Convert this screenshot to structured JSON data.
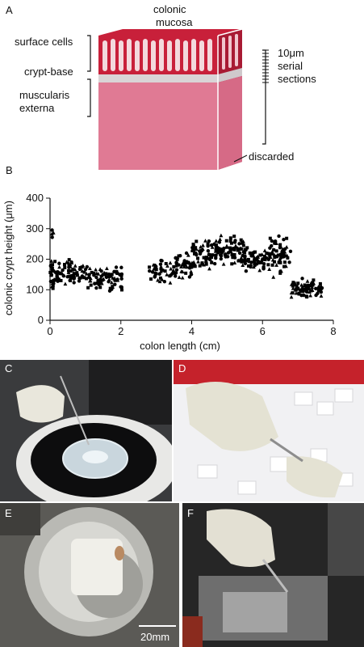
{
  "panels": {
    "a": {
      "letter": "A",
      "title_line1": "colonic",
      "title_line2": "mucosa",
      "left_labels": [
        "surface cells",
        "crypt-base",
        "muscularis",
        "externa"
      ],
      "right_line1": "10μm",
      "right_line2": "serial",
      "right_line3": "sections",
      "discarded": "discarded",
      "colors": {
        "mucosa": "#c8203a",
        "muscle": "#e07a94",
        "crypt": "#f3d9dd",
        "submucosa": "#d9d4d6"
      }
    },
    "b": {
      "letter": "B",
      "c": "C",
      "d": "D",
      "e": "E",
      "f": "F",
      "scalebar_label": "20mm"
    }
  },
  "chart_data": {
    "type": "scatter",
    "xlabel": "colon length (cm)",
    "ylabel": "colonic crypt height (μm)",
    "xlim": [
      0,
      8
    ],
    "ylim": [
      0,
      400
    ],
    "xticks": [
      "0",
      "2",
      "4",
      "6",
      "8"
    ],
    "yticks": [
      "0",
      "100",
      "200",
      "300",
      "400"
    ],
    "grid": false,
    "marker_color": "#000000",
    "segments": [
      {
        "x0": 0.0,
        "x1": 0.15,
        "mean": 150,
        "spread": 70,
        "n": 25
      },
      {
        "x0": 0.05,
        "x1": 0.12,
        "mean": 285,
        "spread": 15,
        "n": 4
      },
      {
        "x0": 0.15,
        "x1": 1.0,
        "mean": 160,
        "spread": 45,
        "n": 70
      },
      {
        "x0": 1.0,
        "x1": 2.05,
        "mean": 140,
        "spread": 45,
        "n": 80
      },
      {
        "x0": 2.8,
        "x1": 3.5,
        "mean": 160,
        "spread": 40,
        "n": 40
      },
      {
        "x0": 3.5,
        "x1": 4.0,
        "mean": 180,
        "spread": 50,
        "n": 40
      },
      {
        "x0": 4.0,
        "x1": 4.7,
        "mean": 220,
        "spread": 60,
        "n": 70
      },
      {
        "x0": 4.7,
        "x1": 5.5,
        "mean": 230,
        "spread": 55,
        "n": 80
      },
      {
        "x0": 5.5,
        "x1": 6.2,
        "mean": 200,
        "spread": 45,
        "n": 60
      },
      {
        "x0": 6.2,
        "x1": 6.8,
        "mean": 210,
        "spread": 70,
        "n": 60
      },
      {
        "x0": 6.8,
        "x1": 7.7,
        "mean": 105,
        "spread": 35,
        "n": 70
      }
    ]
  }
}
